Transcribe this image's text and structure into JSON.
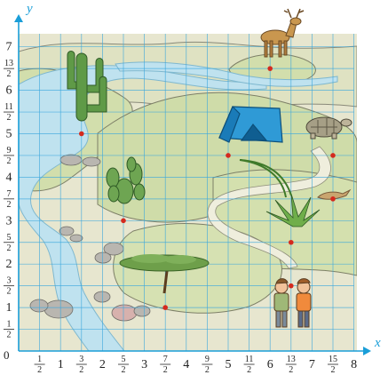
{
  "axes": {
    "x_label": "x",
    "y_label": "y",
    "origin_label": "0",
    "axis_color": "#1a9ed8",
    "grid_color": "#3aa7dd",
    "x_ticks": [
      {
        "value": 0.5,
        "num": "1",
        "den": "2"
      },
      {
        "value": 1,
        "text": "1"
      },
      {
        "value": 1.5,
        "num": "3",
        "den": "2"
      },
      {
        "value": 2,
        "text": "2"
      },
      {
        "value": 2.5,
        "num": "5",
        "den": "2"
      },
      {
        "value": 3,
        "text": "3"
      },
      {
        "value": 3.5,
        "num": "7",
        "den": "2"
      },
      {
        "value": 4,
        "text": "4"
      },
      {
        "value": 4.5,
        "num": "9",
        "den": "2"
      },
      {
        "value": 5,
        "text": "5"
      },
      {
        "value": 5.5,
        "num": "11",
        "den": "2"
      },
      {
        "value": 6,
        "text": "6"
      },
      {
        "value": 6.5,
        "num": "13",
        "den": "2"
      },
      {
        "value": 7,
        "text": "7"
      },
      {
        "value": 7.5,
        "num": "15",
        "den": "2"
      },
      {
        "value": 8,
        "text": "8"
      }
    ],
    "y_ticks": [
      {
        "value": 0.5,
        "num": "1",
        "den": "2"
      },
      {
        "value": 1,
        "text": "1"
      },
      {
        "value": 1.5,
        "num": "3",
        "den": "2"
      },
      {
        "value": 2,
        "text": "2"
      },
      {
        "value": 2.5,
        "num": "5",
        "den": "2"
      },
      {
        "value": 3,
        "text": "3"
      },
      {
        "value": 3.5,
        "num": "7",
        "den": "2"
      },
      {
        "value": 4,
        "text": "4"
      },
      {
        "value": 4.5,
        "num": "9",
        "den": "2"
      },
      {
        "value": 5,
        "text": "5"
      },
      {
        "value": 5.5,
        "num": "11",
        "den": "2"
      },
      {
        "value": 6,
        "text": "6"
      },
      {
        "value": 6.5,
        "num": "13",
        "den": "2"
      },
      {
        "value": 7,
        "text": "7"
      }
    ]
  },
  "landmarks": [
    {
      "name": "cactus",
      "x": 1.5,
      "y": 5
    },
    {
      "name": "deer",
      "x": 6,
      "y": 6.5
    },
    {
      "name": "tent",
      "x": 5,
      "y": 4.5
    },
    {
      "name": "tortoise",
      "x": 7.5,
      "y": 4.5
    },
    {
      "name": "lizard",
      "x": 7.5,
      "y": 3.5
    },
    {
      "name": "prickly-pear",
      "x": 2.5,
      "y": 3
    },
    {
      "name": "agave",
      "x": 6.5,
      "y": 2.5
    },
    {
      "name": "children",
      "x": 6.5,
      "y": 1.5
    },
    {
      "name": "acacia-tree",
      "x": 3.5,
      "y": 1
    }
  ],
  "marker_color": "#d42a1e"
}
